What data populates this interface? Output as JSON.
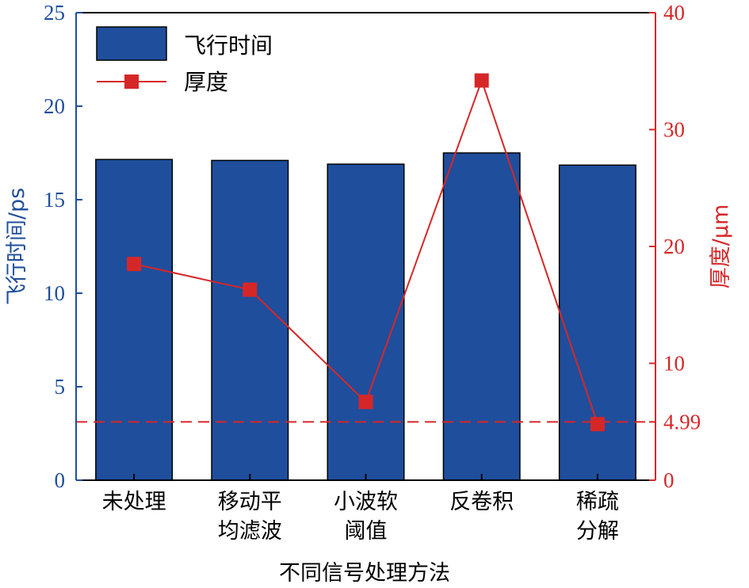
{
  "chart_data": {
    "type": "bar+line",
    "xlabel": "不同信号处理方法",
    "categories": [
      [
        "未处理"
      ],
      [
        "移动平",
        "均滤波"
      ],
      [
        "小波软",
        "阈值"
      ],
      [
        "反卷积"
      ],
      [
        "稀疏",
        "分解"
      ]
    ],
    "series": [
      {
        "name": "飞行时间",
        "type": "bar",
        "axis": "left",
        "color": "#1f4e9c",
        "values": [
          17.15,
          17.1,
          16.9,
          17.5,
          16.85
        ]
      },
      {
        "name": "厚度",
        "type": "line",
        "axis": "right",
        "color": "#d62728",
        "marker": "square",
        "values": [
          18.5,
          16.3,
          6.7,
          34.2,
          4.8
        ]
      }
    ],
    "y_left": {
      "label": "飞行时间/ps",
      "range": [
        0,
        25
      ],
      "ticks": [
        0,
        5,
        10,
        15,
        20,
        25
      ]
    },
    "y_right": {
      "label": "厚度/μm",
      "range": [
        0,
        40
      ],
      "ticks": [
        "0",
        "10",
        "20",
        "30",
        "40"
      ],
      "extra_tick": "4.99"
    },
    "reference_line": {
      "value": 4.99,
      "axis": "right",
      "style": "dashed",
      "color": "#d62728"
    },
    "legend_position": "top-left"
  }
}
